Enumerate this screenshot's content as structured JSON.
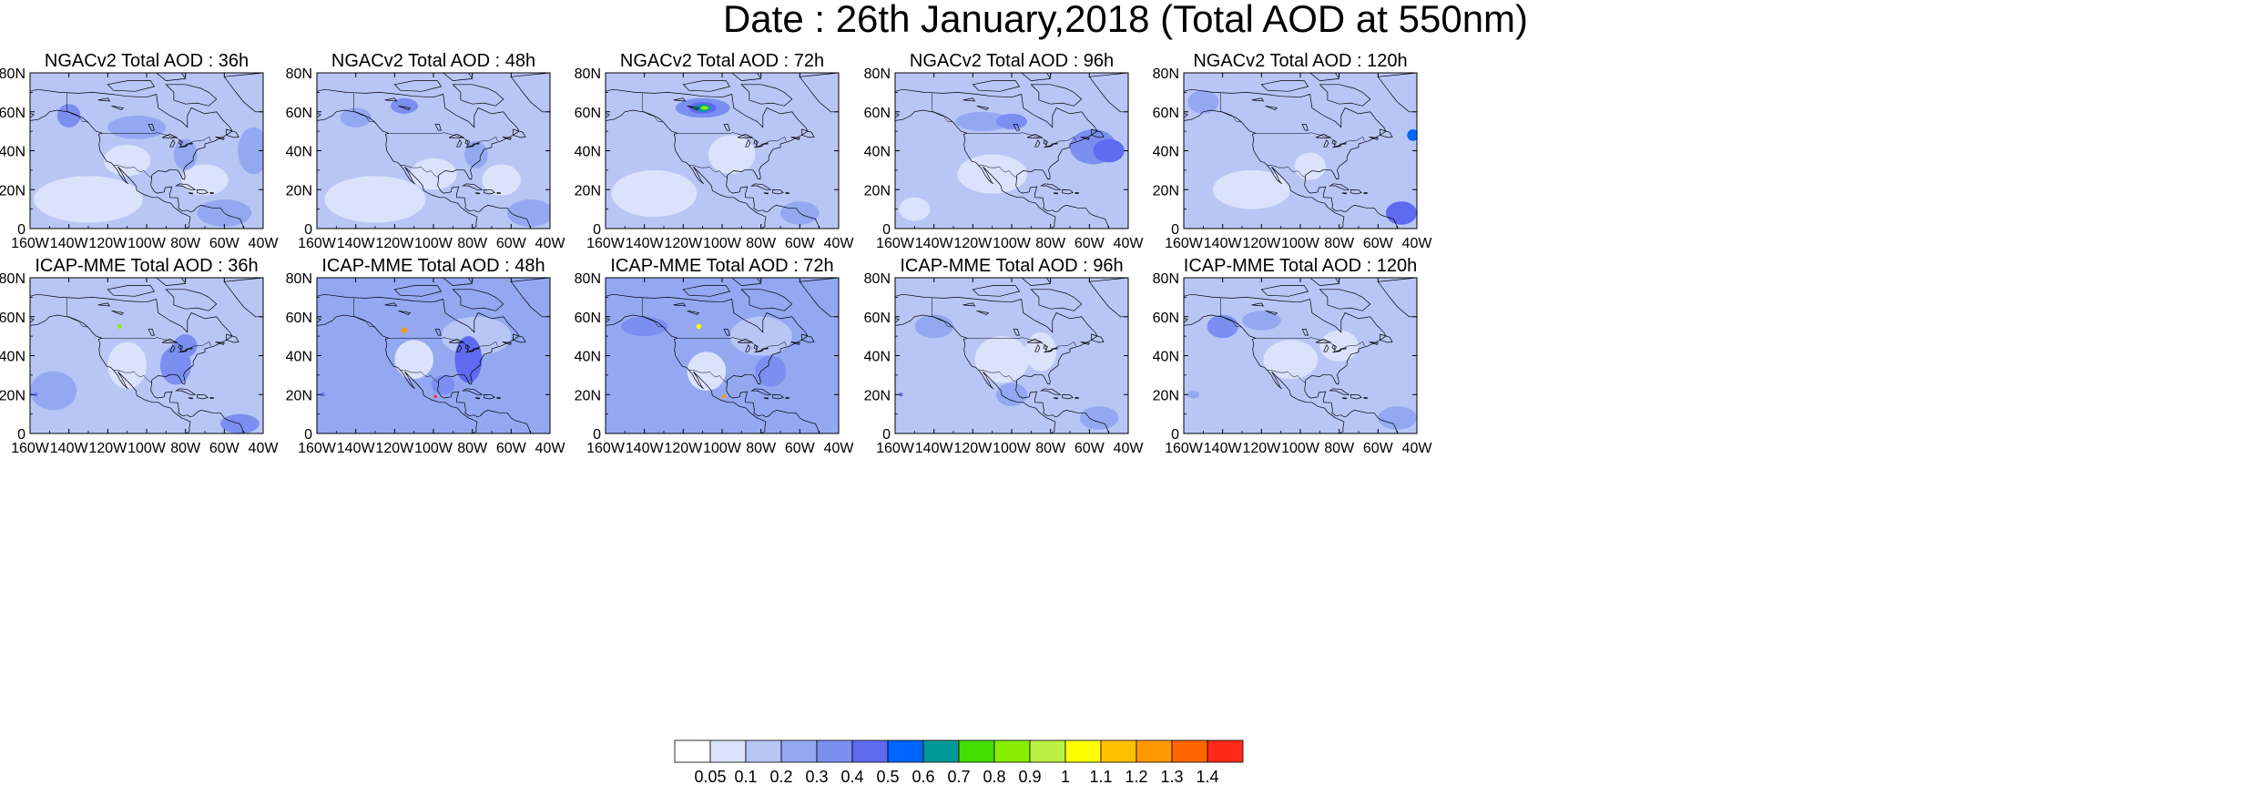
{
  "title": "Date : 26th January,2018 (Total AOD at 550nm)",
  "colors": {
    "land_base": "#c8d4f8",
    "white": "#ffffff",
    "coast": "#000000"
  },
  "chart_data": [
    {
      "type": "heatmap",
      "title": "NGACv2 Total AOD : 36h",
      "model": "NGACv2",
      "forecast_hour": 36,
      "xlim": [
        -160,
        -40
      ],
      "ylim": [
        0,
        80
      ],
      "xticks": [
        "160W",
        "140W",
        "120W",
        "100W",
        "80W",
        "60W",
        "40W"
      ],
      "yticks": [
        "0",
        "20N",
        "40N",
        "60N",
        "80N"
      ],
      "base_level": 0.1,
      "features": [
        {
          "lon": -130,
          "lat": 15,
          "rlon": 28,
          "rlat": 12,
          "level": 0.05
        },
        {
          "lon": -110,
          "lat": 35,
          "rlon": 12,
          "rlat": 8,
          "level": 0.05
        },
        {
          "lon": -70,
          "lat": 25,
          "rlon": 12,
          "rlat": 8,
          "level": 0.05
        },
        {
          "lon": -140,
          "lat": 58,
          "rlon": 6,
          "rlat": 6,
          "level": 0.3
        },
        {
          "lon": -105,
          "lat": 52,
          "rlon": 15,
          "rlat": 6,
          "level": 0.2
        },
        {
          "lon": -80,
          "lat": 38,
          "rlon": 6,
          "rlat": 8,
          "level": 0.2
        },
        {
          "lon": -60,
          "lat": 8,
          "rlon": 14,
          "rlat": 7,
          "level": 0.2
        },
        {
          "lon": -45,
          "lat": 40,
          "rlon": 8,
          "rlat": 12,
          "level": 0.2
        }
      ]
    },
    {
      "type": "heatmap",
      "title": "NGACv2 Total AOD : 48h",
      "model": "NGACv2",
      "forecast_hour": 48,
      "xlim": [
        -160,
        -40
      ],
      "ylim": [
        0,
        80
      ],
      "xticks": [
        "160W",
        "140W",
        "120W",
        "100W",
        "80W",
        "60W",
        "40W"
      ],
      "yticks": [
        "0",
        "20N",
        "40N",
        "60N",
        "80N"
      ],
      "base_level": 0.1,
      "features": [
        {
          "lon": -130,
          "lat": 15,
          "rlon": 26,
          "rlat": 12,
          "level": 0.05
        },
        {
          "lon": -100,
          "lat": 28,
          "rlon": 12,
          "rlat": 8,
          "level": 0.05
        },
        {
          "lon": -65,
          "lat": 25,
          "rlon": 10,
          "rlat": 8,
          "level": 0.05
        },
        {
          "lon": -115,
          "lat": 63,
          "rlon": 7,
          "rlat": 4,
          "level": 0.3
        },
        {
          "lon": -140,
          "lat": 57,
          "rlon": 8,
          "rlat": 5,
          "level": 0.2
        },
        {
          "lon": -78,
          "lat": 38,
          "rlon": 6,
          "rlat": 7,
          "level": 0.2
        },
        {
          "lon": -50,
          "lat": 8,
          "rlon": 12,
          "rlat": 7,
          "level": 0.2
        }
      ]
    },
    {
      "type": "heatmap",
      "title": "NGACv2 Total AOD : 72h",
      "model": "NGACv2",
      "forecast_hour": 72,
      "xlim": [
        -160,
        -40
      ],
      "ylim": [
        0,
        80
      ],
      "xticks": [
        "160W",
        "140W",
        "120W",
        "100W",
        "80W",
        "60W",
        "40W"
      ],
      "yticks": [
        "0",
        "20N",
        "40N",
        "60N",
        "80N"
      ],
      "base_level": 0.1,
      "features": [
        {
          "lon": -135,
          "lat": 18,
          "rlon": 22,
          "rlat": 12,
          "level": 0.05
        },
        {
          "lon": -95,
          "lat": 38,
          "rlon": 12,
          "rlat": 10,
          "level": 0.05
        },
        {
          "lon": -110,
          "lat": 62,
          "rlon": 14,
          "rlat": 5,
          "level": 0.3
        },
        {
          "lon": -110,
          "lat": 62,
          "rlon": 7,
          "rlat": 3,
          "level": 0.4
        },
        {
          "lon": -110,
          "lat": 62,
          "rlon": 4,
          "rlat": 2,
          "level": 0.6
        },
        {
          "lon": -109,
          "lat": 62,
          "rlon": 2,
          "rlat": 1,
          "level": 0.8
        },
        {
          "lon": -60,
          "lat": 8,
          "rlon": 10,
          "rlat": 6,
          "level": 0.2
        }
      ]
    },
    {
      "type": "heatmap",
      "title": "NGACv2 Total AOD : 96h",
      "model": "NGACv2",
      "forecast_hour": 96,
      "xlim": [
        -160,
        -40
      ],
      "ylim": [
        0,
        80
      ],
      "xticks": [
        "160W",
        "140W",
        "120W",
        "100W",
        "80W",
        "60W",
        "40W"
      ],
      "yticks": [
        "0",
        "20N",
        "40N",
        "60N",
        "80N"
      ],
      "base_level": 0.1,
      "features": [
        {
          "lon": -110,
          "lat": 28,
          "rlon": 18,
          "rlat": 10,
          "level": 0.05
        },
        {
          "lon": -150,
          "lat": 10,
          "rlon": 8,
          "rlat": 6,
          "level": 0.05
        },
        {
          "lon": -115,
          "lat": 55,
          "rlon": 14,
          "rlat": 5,
          "level": 0.2
        },
        {
          "lon": -100,
          "lat": 55,
          "rlon": 8,
          "rlat": 4,
          "level": 0.3
        },
        {
          "lon": -58,
          "lat": 42,
          "rlon": 12,
          "rlat": 9,
          "level": 0.3
        },
        {
          "lon": -50,
          "lat": 40,
          "rlon": 8,
          "rlat": 6,
          "level": 0.4
        }
      ]
    },
    {
      "type": "heatmap",
      "title": "NGACv2 Total AOD : 120h",
      "model": "NGACv2",
      "forecast_hour": 120,
      "xlim": [
        -160,
        -40
      ],
      "ylim": [
        0,
        80
      ],
      "xticks": [
        "160W",
        "140W",
        "120W",
        "100W",
        "80W",
        "60W",
        "40W"
      ],
      "yticks": [
        "0",
        "20N",
        "40N",
        "60N",
        "80N"
      ],
      "base_level": 0.1,
      "features": [
        {
          "lon": -125,
          "lat": 20,
          "rlon": 20,
          "rlat": 10,
          "level": 0.05
        },
        {
          "lon": -95,
          "lat": 32,
          "rlon": 8,
          "rlat": 7,
          "level": 0.05
        },
        {
          "lon": -150,
          "lat": 65,
          "rlon": 8,
          "rlat": 6,
          "level": 0.2
        },
        {
          "lon": -42,
          "lat": 48,
          "rlon": 3,
          "rlat": 3,
          "level": 0.5
        },
        {
          "lon": -48,
          "lat": 8,
          "rlon": 8,
          "rlat": 6,
          "level": 0.4
        }
      ]
    },
    {
      "type": "heatmap",
      "title": "ICAP-MME Total AOD : 36h",
      "model": "ICAP-MME",
      "forecast_hour": 36,
      "xlim": [
        -160,
        -40
      ],
      "ylim": [
        0,
        80
      ],
      "xticks": [
        "160W",
        "140W",
        "120W",
        "100W",
        "80W",
        "60W",
        "40W"
      ],
      "yticks": [
        "0",
        "20N",
        "40N",
        "60N",
        "80N"
      ],
      "base_level": 0.1,
      "features": [
        {
          "lon": -110,
          "lat": 35,
          "rlon": 10,
          "rlat": 12,
          "level": 0.05
        },
        {
          "lon": -148,
          "lat": 22,
          "rlon": 12,
          "rlat": 10,
          "level": 0.2
        },
        {
          "lon": -85,
          "lat": 35,
          "rlon": 8,
          "rlat": 10,
          "level": 0.3
        },
        {
          "lon": -80,
          "lat": 45,
          "rlon": 6,
          "rlat": 6,
          "level": 0.3
        },
        {
          "lon": -157,
          "lat": 20,
          "rlon": 1,
          "rlat": 1,
          "level": 0.4
        },
        {
          "lon": -114,
          "lat": 55,
          "rlon": 1,
          "rlat": 1.2,
          "level": 0.8
        },
        {
          "lon": -52,
          "lat": 5,
          "rlon": 10,
          "rlat": 5,
          "level": 0.3
        }
      ]
    },
    {
      "type": "heatmap",
      "title": "ICAP-MME Total AOD : 48h",
      "model": "ICAP-MME",
      "forecast_hour": 48,
      "xlim": [
        -160,
        -40
      ],
      "ylim": [
        0,
        80
      ],
      "xticks": [
        "160W",
        "140W",
        "120W",
        "100W",
        "80W",
        "60W",
        "40W"
      ],
      "yticks": [
        "0",
        "20N",
        "40N",
        "60N",
        "80N"
      ],
      "base_level": 0.2,
      "features": [
        {
          "lon": -110,
          "lat": 38,
          "rlon": 10,
          "rlat": 10,
          "level": 0.05
        },
        {
          "lon": -78,
          "lat": 50,
          "rlon": 18,
          "rlat": 10,
          "level": 0.1
        },
        {
          "lon": -82,
          "lat": 38,
          "rlon": 7,
          "rlat": 12,
          "level": 0.4
        },
        {
          "lon": -95,
          "lat": 25,
          "rlon": 6,
          "rlat": 5,
          "level": 0.3
        },
        {
          "lon": -157,
          "lat": 20,
          "rlon": 1,
          "rlat": 1,
          "level": 0.4
        },
        {
          "lon": -115,
          "lat": 53,
          "rlon": 1.5,
          "rlat": 1.5,
          "level": 1.2
        },
        {
          "lon": -99,
          "lat": 19,
          "rlon": 0.8,
          "rlat": 0.8,
          "level": 1.4
        }
      ]
    },
    {
      "type": "heatmap",
      "title": "ICAP-MME Total AOD : 72h",
      "model": "ICAP-MME",
      "forecast_hour": 72,
      "xlim": [
        -160,
        -40
      ],
      "ylim": [
        0,
        80
      ],
      "xticks": [
        "160W",
        "140W",
        "120W",
        "100W",
        "80W",
        "60W",
        "40W"
      ],
      "yticks": [
        "0",
        "20N",
        "40N",
        "60N",
        "80N"
      ],
      "base_level": 0.2,
      "features": [
        {
          "lon": -108,
          "lat": 32,
          "rlon": 10,
          "rlat": 10,
          "level": 0.05
        },
        {
          "lon": -80,
          "lat": 50,
          "rlon": 16,
          "rlat": 10,
          "level": 0.1
        },
        {
          "lon": -140,
          "lat": 55,
          "rlon": 12,
          "rlat": 5,
          "level": 0.3
        },
        {
          "lon": -75,
          "lat": 32,
          "rlon": 8,
          "rlat": 8,
          "level": 0.3
        },
        {
          "lon": -112,
          "lat": 55,
          "rlon": 1.3,
          "rlat": 1.3,
          "level": 1.0
        },
        {
          "lon": -99,
          "lat": 19,
          "rlon": 1,
          "rlat": 1,
          "level": 1.2
        }
      ]
    },
    {
      "type": "heatmap",
      "title": "ICAP-MME Total AOD : 96h",
      "model": "ICAP-MME",
      "forecast_hour": 96,
      "xlim": [
        -160,
        -40
      ],
      "ylim": [
        0,
        80
      ],
      "xticks": [
        "160W",
        "140W",
        "120W",
        "100W",
        "80W",
        "60W",
        "40W"
      ],
      "yticks": [
        "0",
        "20N",
        "40N",
        "60N",
        "80N"
      ],
      "base_level": 0.1,
      "features": [
        {
          "lon": -105,
          "lat": 38,
          "rlon": 14,
          "rlat": 12,
          "level": 0.05
        },
        {
          "lon": -85,
          "lat": 42,
          "rlon": 8,
          "rlat": 10,
          "level": 0.05
        },
        {
          "lon": -140,
          "lat": 55,
          "rlon": 10,
          "rlat": 6,
          "level": 0.2
        },
        {
          "lon": -100,
          "lat": 20,
          "rlon": 8,
          "rlat": 6,
          "level": 0.2
        },
        {
          "lon": -157,
          "lat": 20,
          "rlon": 1,
          "rlat": 1,
          "level": 0.4
        },
        {
          "lon": -55,
          "lat": 8,
          "rlon": 10,
          "rlat": 6,
          "level": 0.2
        }
      ]
    },
    {
      "type": "heatmap",
      "title": "ICAP-MME Total AOD : 120h",
      "model": "ICAP-MME",
      "forecast_hour": 120,
      "xlim": [
        -160,
        -40
      ],
      "ylim": [
        0,
        80
      ],
      "xticks": [
        "160W",
        "140W",
        "120W",
        "100W",
        "80W",
        "60W",
        "40W"
      ],
      "yticks": [
        "0",
        "20N",
        "40N",
        "60N",
        "80N"
      ],
      "base_level": 0.1,
      "features": [
        {
          "lon": -105,
          "lat": 38,
          "rlon": 14,
          "rlat": 10,
          "level": 0.05
        },
        {
          "lon": -80,
          "lat": 45,
          "rlon": 10,
          "rlat": 8,
          "level": 0.05
        },
        {
          "lon": -140,
          "lat": 55,
          "rlon": 8,
          "rlat": 6,
          "level": 0.3
        },
        {
          "lon": -120,
          "lat": 58,
          "rlon": 10,
          "rlat": 5,
          "level": 0.2
        },
        {
          "lon": -155,
          "lat": 20,
          "rlon": 3,
          "rlat": 2,
          "level": 0.2
        },
        {
          "lon": -50,
          "lat": 8,
          "rlon": 10,
          "rlat": 6,
          "level": 0.2
        }
      ]
    }
  ],
  "colorbar": {
    "labels": [
      "0.05",
      "0.1",
      "0.2",
      "0.3",
      "0.4",
      "0.5",
      "0.6",
      "0.7",
      "0.8",
      "0.9",
      "1",
      "1.1",
      "1.2",
      "1.3",
      "1.4"
    ],
    "colors": [
      "#ffffff",
      "#dbe2fb",
      "#b8c6f6",
      "#94a8f2",
      "#7b8ff0",
      "#5e6af0",
      "#0066ff",
      "#009999",
      "#44dd00",
      "#88ee00",
      "#bbf044",
      "#ffff00",
      "#ffc000",
      "#ff9900",
      "#ff6600",
      "#ff2a1a"
    ],
    "levels": [
      0,
      0.05,
      0.1,
      0.2,
      0.3,
      0.4,
      0.5,
      0.6,
      0.7,
      0.8,
      0.9,
      1.0,
      1.1,
      1.2,
      1.3,
      1.4
    ]
  }
}
